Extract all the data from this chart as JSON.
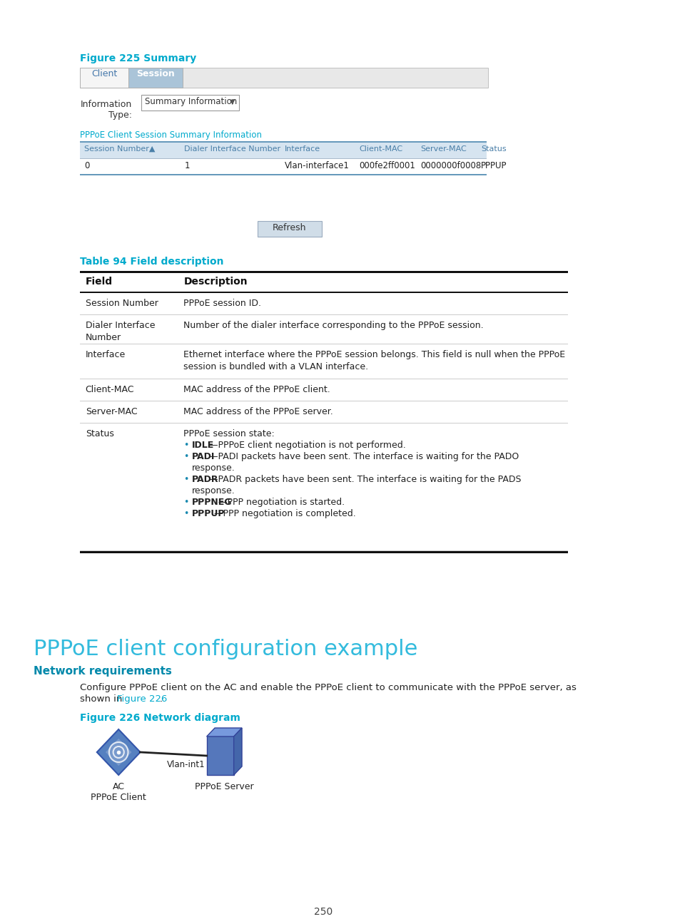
{
  "bg_color": "#ffffff",
  "page_color": "#ffffff",
  "figure_label": "Figure 225 Summary",
  "table_label": "Table 94 Field description",
  "section_title": "PPPoE client configuration example",
  "section_subtitle": "Network requirements",
  "figure226_label": "Figure 226 Network diagram",
  "page_number": "250",
  "cyan_color": "#00aacc",
  "dark_cyan": "#0099bb",
  "tab_client": "Client",
  "tab_session": "Session",
  "tab_session_bg": "#aac4d8",
  "tab_bar_bg": "#e8e8e8",
  "info_type_label": "Information\nType:",
  "dropdown_text": "Summary Information",
  "pppoe_label": "PPPoE Client Session Summary Information",
  "table_header": [
    "Session Number▲",
    "Dialer Interface Number",
    "Interface",
    "Client-MAC",
    "Server-MAC",
    "Status"
  ],
  "table_header_color": "#4a90c0",
  "table_row": [
    "0",
    "1",
    "Vlan-interface1",
    "000fe2ff0001",
    "0000000f0008",
    "PPPUP"
  ],
  "table_bg_header": "#d6e4f0",
  "table_bg_row": "#ffffff",
  "table_border_color": "#88aac0",
  "refresh_text": "Refresh",
  "field_col": "Field",
  "desc_col": "Description",
  "table94_rows": [
    [
      "Session Number",
      "PPPoE session ID."
    ],
    [
      "Dialer Interface\nNumber",
      "Number of the dialer interface corresponding to the PPPoE session."
    ],
    [
      "Interface",
      "Ethernet interface where the PPPoE session belongs. This field is null when the PPPoE\nsession is bundled with a VLAN interface."
    ],
    [
      "Client-MAC",
      "MAC address of the PPPoE client."
    ],
    [
      "Server-MAC",
      "MAC address of the PPPoE server."
    ],
    [
      "Status",
      "PPPoE session state:\n• IDLE—PPPoE client negotiation is not performed.\n• PADI—PADI packets have been sent. The interface is waiting for the PADO\n  response.\n• PADR—PADR packets have been sent. The interface is waiting for the PADS\n  response.\n• PPPNEG—PPP negotiation is started.\n• PPPUP—PPP negotiation is completed."
    ]
  ],
  "paragraph_text": "Configure PPPoE client on the AC and enable the PPPoE client to communicate with the PPPoE server, as\nshown in Figure 226.",
  "figure226_link": "Figure 226",
  "ac_label": "AC\nPPPoE Client",
  "server_label": "PPPoE Server",
  "vlan_label": "Vlan-int1"
}
